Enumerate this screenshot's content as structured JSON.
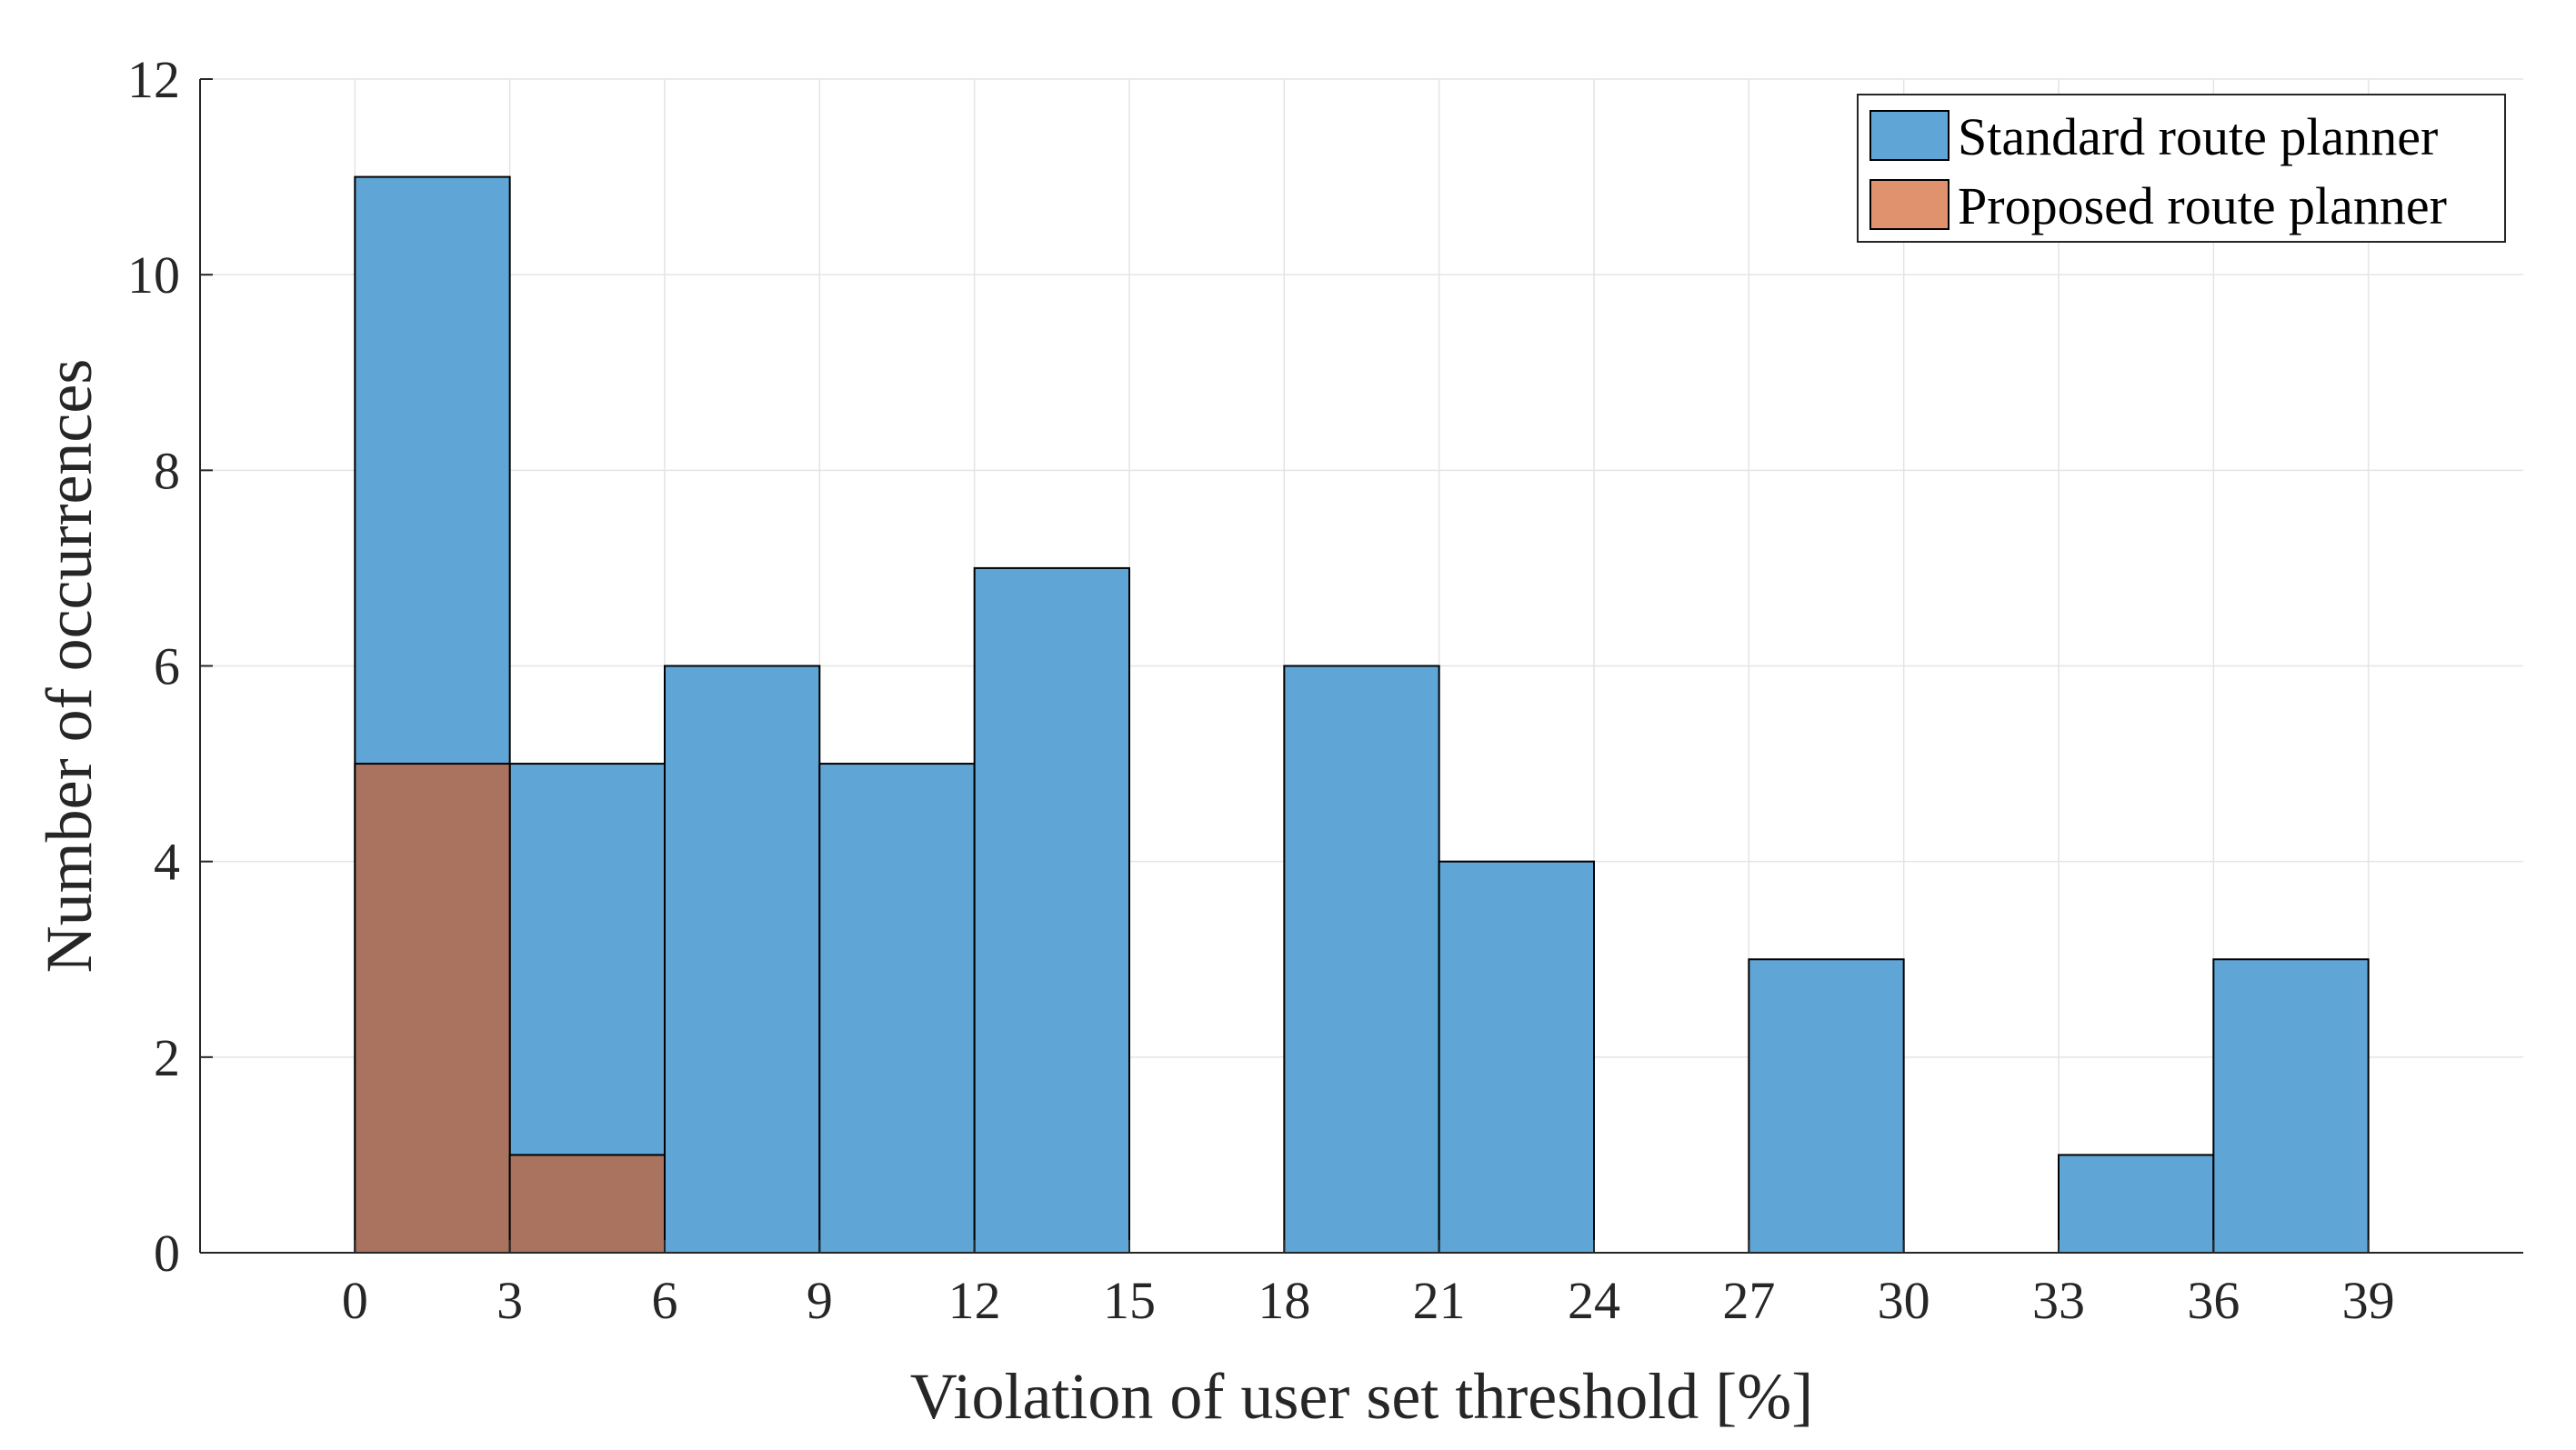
{
  "chart_data": {
    "type": "bar",
    "subtype": "histogram",
    "title": "",
    "xlabel": "Violation of user set threshold [%]",
    "ylabel": "Number of occurrences",
    "xlim": [
      -3,
      42
    ],
    "ylim": [
      0,
      12
    ],
    "xticks": [
      0,
      3,
      6,
      9,
      12,
      15,
      18,
      21,
      24,
      27,
      30,
      33,
      36,
      39
    ],
    "yticks": [
      0,
      2,
      4,
      6,
      8,
      10,
      12
    ],
    "grid": true,
    "legend_position": "top-right",
    "bin_edges": [
      0,
      3,
      6,
      9,
      12,
      15,
      18,
      21,
      24,
      27,
      30,
      33,
      36,
      39
    ],
    "series": [
      {
        "name": "Standard route planner",
        "color": "#5fa6d6",
        "values": [
          11,
          5,
          6,
          5,
          7,
          0,
          6,
          4,
          0,
          3,
          0,
          1,
          3
        ]
      },
      {
        "name": "Proposed route planner",
        "color": "#e0926f",
        "overlap_color": "#a9735f",
        "values": [
          5,
          1,
          0,
          0,
          0,
          0,
          0,
          0,
          0,
          0,
          0,
          0,
          0
        ]
      }
    ]
  }
}
